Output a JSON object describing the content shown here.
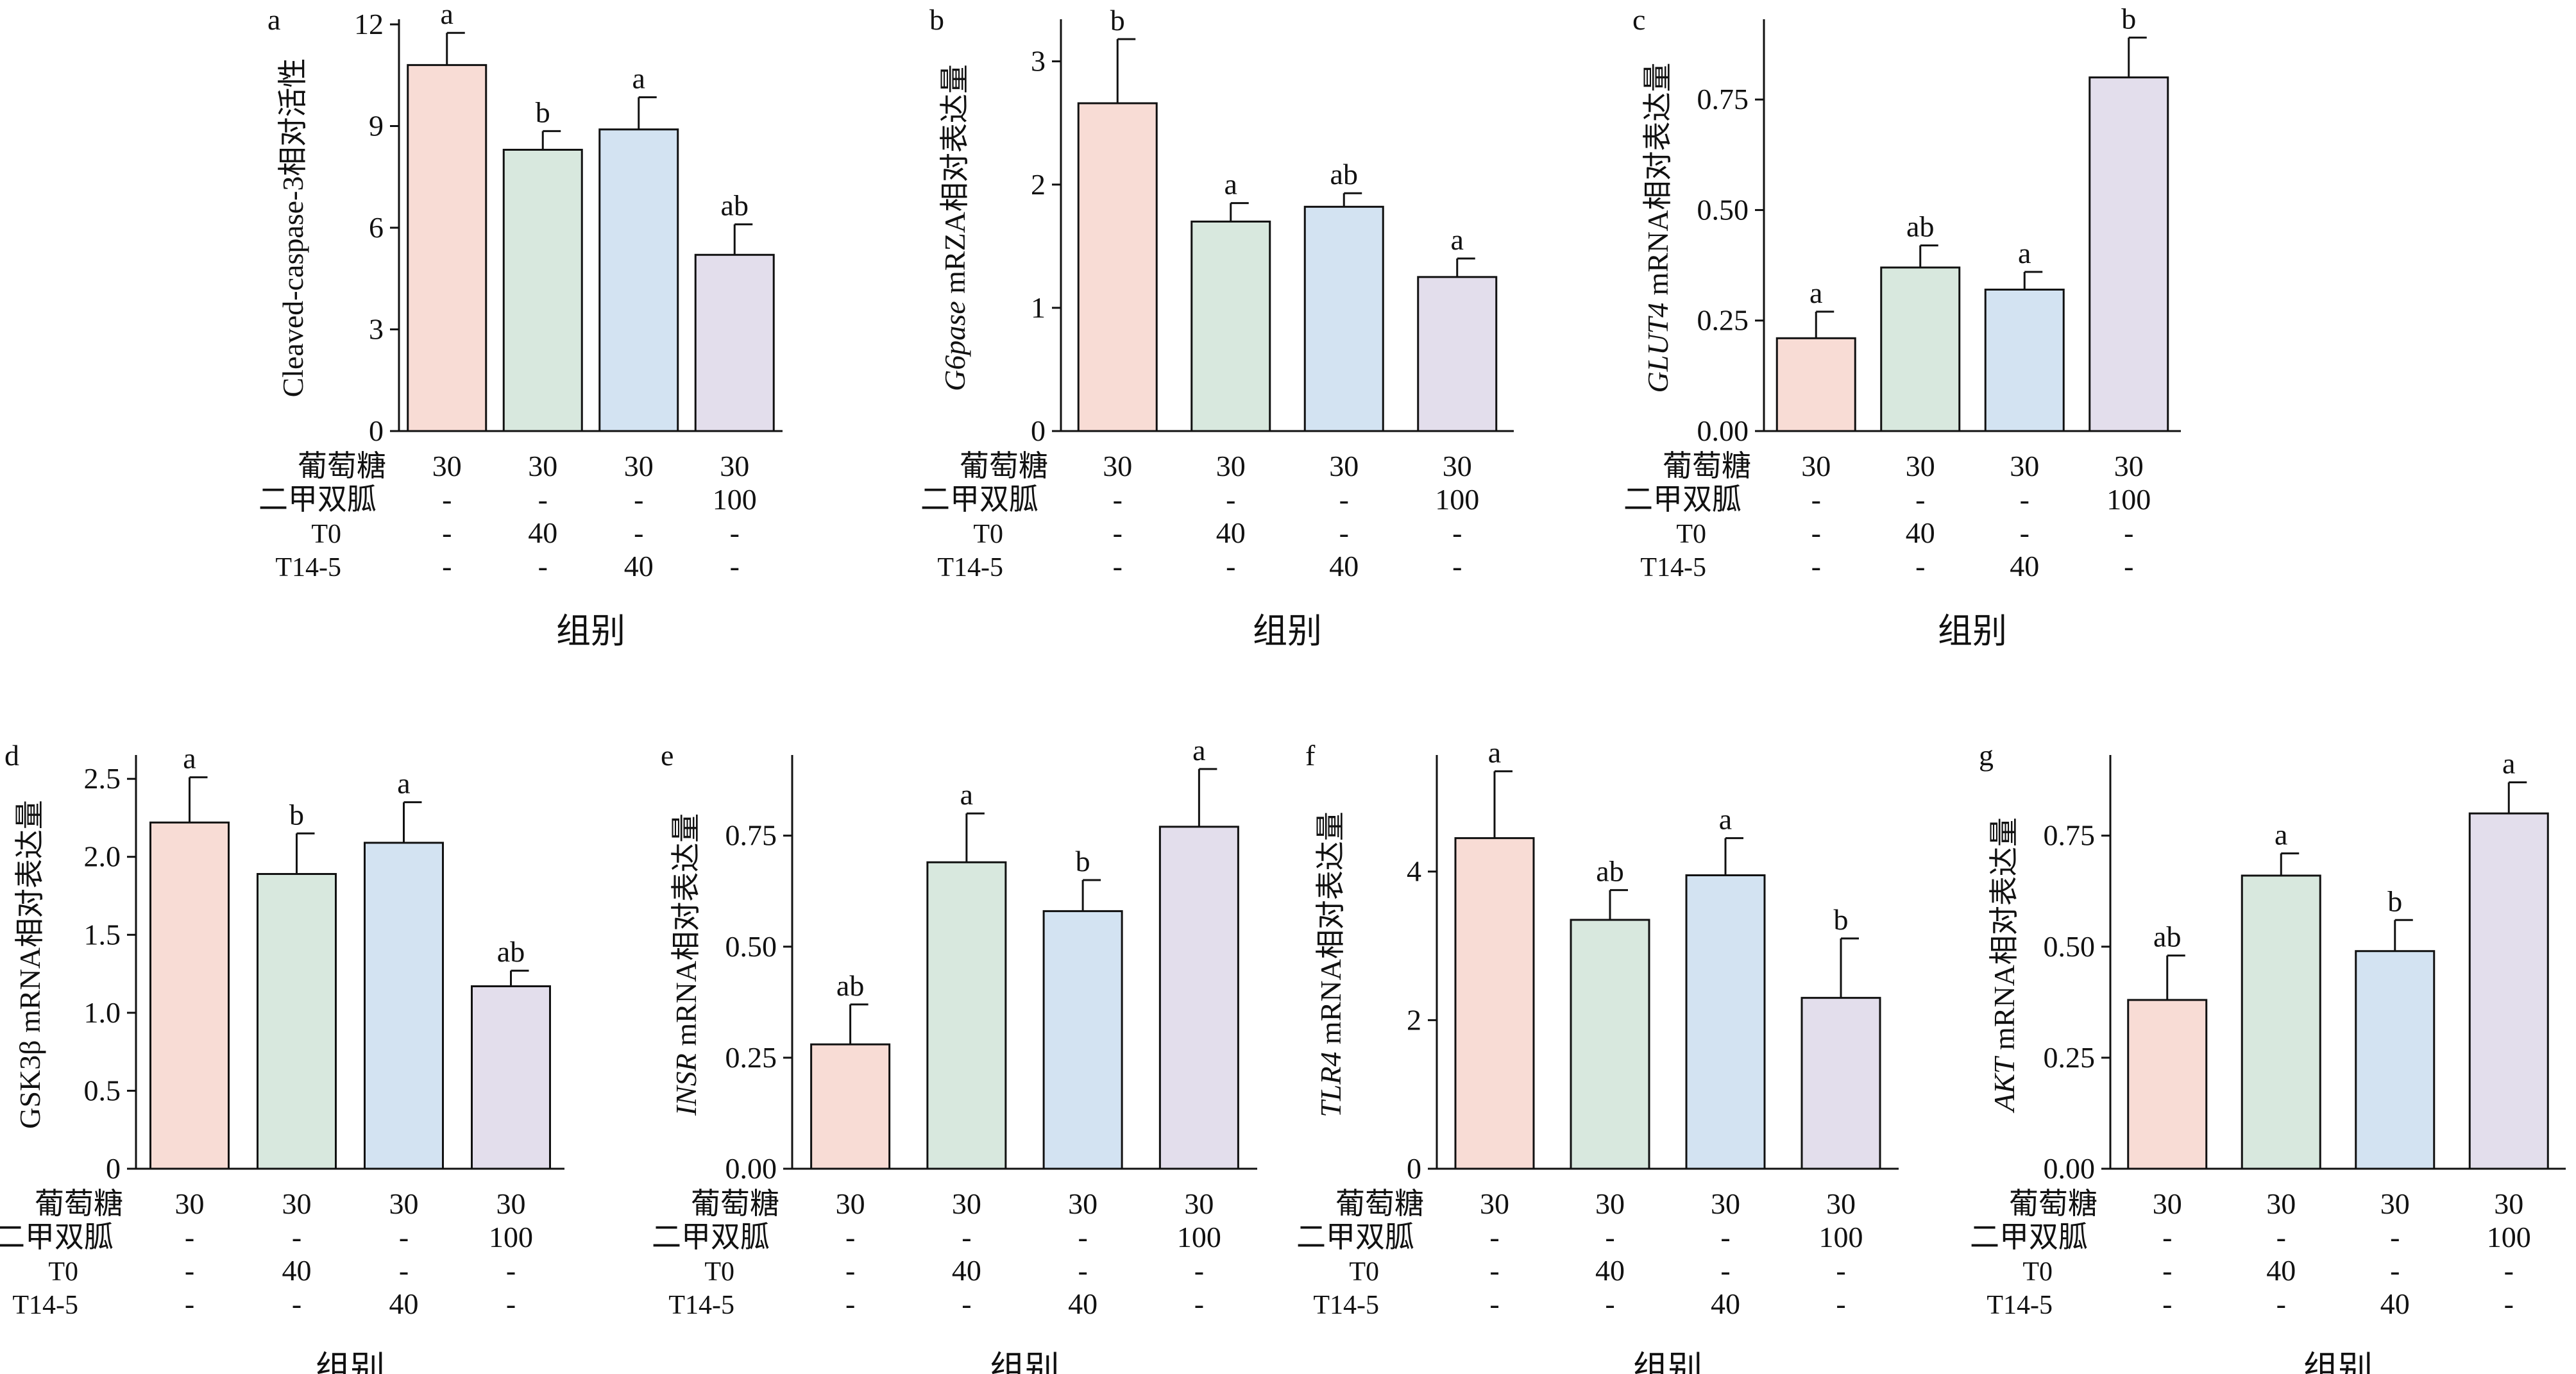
{
  "figure": {
    "xlabel": "组别"
  },
  "condition_labels": [
    "葡萄糖",
    "二甲双胍",
    "T0",
    "T14-5"
  ],
  "conditions": [
    [
      "30",
      "30",
      "30",
      "30"
    ],
    [
      "-",
      "-",
      "-",
      "100"
    ],
    [
      "-",
      "40",
      "-",
      "-"
    ],
    [
      "-",
      "-",
      "40",
      "-"
    ]
  ],
  "colors": {
    "bars": [
      "#f8dcd5",
      "#d8e8de",
      "#d3e3f2",
      "#e3deec"
    ],
    "stroke": "#111111"
  },
  "chart_data": [
    {
      "panel": "a",
      "type": "bar",
      "ylabel": "Cleaved-caspase-3相对活性",
      "ylabel_italic": "",
      "ylim": [
        0,
        12
      ],
      "yticks": [
        "0",
        "3",
        "6",
        "9",
        "12"
      ],
      "ytick_values": [
        0,
        3,
        6,
        9,
        12
      ],
      "values": [
        10.8,
        8.3,
        8.9,
        5.2
      ],
      "errors": [
        0.95,
        0.55,
        0.95,
        0.9
      ],
      "letters": [
        "a",
        "b",
        "a",
        "ab"
      ]
    },
    {
      "panel": "b",
      "type": "bar",
      "ylabel": " mRZA相对表达量",
      "ylabel_italic": "G6pase",
      "ylim": [
        0,
        3.3
      ],
      "yticks": [
        "0",
        "1",
        "2",
        "3"
      ],
      "ytick_values": [
        0,
        1,
        2,
        3
      ],
      "values": [
        2.66,
        1.7,
        1.82,
        1.25
      ],
      "errors": [
        0.52,
        0.15,
        0.11,
        0.15
      ],
      "letters": [
        "b",
        "a",
        "ab",
        "a"
      ]
    },
    {
      "panel": "c",
      "type": "bar",
      "ylabel": " mRNA相对表达量",
      "ylabel_italic": "GLUT4",
      "ylim": [
        0,
        0.92
      ],
      "yticks": [
        "0.00",
        "0.25",
        "0.50",
        "0.75"
      ],
      "ytick_values": [
        0,
        0.25,
        0.5,
        0.75
      ],
      "values": [
        0.21,
        0.37,
        0.32,
        0.8
      ],
      "errors": [
        0.06,
        0.05,
        0.04,
        0.09
      ],
      "letters": [
        "a",
        "ab",
        "a",
        "b"
      ]
    },
    {
      "panel": "d",
      "type": "bar",
      "ylabel": "GSK3β mRNA相对表达量",
      "ylabel_italic": "",
      "ylim": [
        0,
        2.62
      ],
      "yticks": [
        "0",
        "0.5",
        "1.0",
        "1.5",
        "2.0",
        "2.5"
      ],
      "ytick_values": [
        0,
        0.5,
        1,
        1.5,
        2,
        2.5
      ],
      "values": [
        2.22,
        1.89,
        2.09,
        1.17
      ],
      "errors": [
        0.29,
        0.26,
        0.26,
        0.1
      ],
      "letters": [
        "a",
        "b",
        "a",
        "ab"
      ]
    },
    {
      "panel": "e",
      "type": "bar",
      "ylabel": " mRNA相对表达量",
      "ylabel_italic": "INSR",
      "ylim": [
        0,
        0.92
      ],
      "yticks": [
        "0.00",
        "0.25",
        "0.50",
        "0.75"
      ],
      "ytick_values": [
        0,
        0.25,
        0.5,
        0.75
      ],
      "values": [
        0.28,
        0.69,
        0.58,
        0.77
      ],
      "errors": [
        0.09,
        0.11,
        0.07,
        0.13
      ],
      "letters": [
        "ab",
        "a",
        "b",
        "a"
      ]
    },
    {
      "panel": "f",
      "type": "bar",
      "ylabel": " mRNA相对表达量",
      "ylabel_italic": "TLR4",
      "ylim": [
        0,
        5.5
      ],
      "yticks": [
        "0",
        "2",
        "4"
      ],
      "ytick_values": [
        0,
        2,
        4
      ],
      "values": [
        4.45,
        3.35,
        3.95,
        2.3
      ],
      "errors": [
        0.9,
        0.4,
        0.5,
        0.8
      ],
      "letters": [
        "a",
        "ab",
        "a",
        "b"
      ]
    },
    {
      "panel": "g",
      "type": "bar",
      "ylabel": " mRNA相对表达量",
      "ylabel_italic": "AKT",
      "ylim": [
        0,
        0.92
      ],
      "yticks": [
        "0.00",
        "0.25",
        "0.50",
        "0.75"
      ],
      "ytick_values": [
        0,
        0.25,
        0.5,
        0.75
      ],
      "values": [
        0.38,
        0.66,
        0.49,
        0.8
      ],
      "errors": [
        0.1,
        0.05,
        0.07,
        0.07
      ],
      "letters": [
        "ab",
        "a",
        "b",
        "a"
      ]
    }
  ]
}
